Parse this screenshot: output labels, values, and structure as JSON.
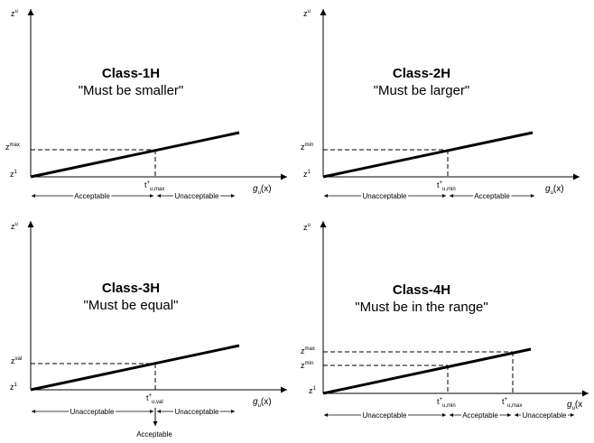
{
  "panels": [
    {
      "title": "Class-1H",
      "subtitle": "\"Must be smaller\"",
      "y_axis": {
        "base": "z",
        "sup": "u"
      },
      "x_axis": {
        "base": "g",
        "sub": "u",
        "tail": "(x)"
      },
      "origin": {
        "base": "z",
        "sup": "1"
      },
      "level_label": {
        "base": "z",
        "sup": "max"
      },
      "threshold": {
        "base": "t",
        "sup": "+",
        "sub": "u,max"
      },
      "regions": [
        "Acceptable",
        "Unacceptable"
      ]
    },
    {
      "title": "Class-2H",
      "subtitle": "\"Must be larger\"",
      "y_axis": {
        "base": "z",
        "sup": "u"
      },
      "x_axis": {
        "base": "g",
        "sub": "u",
        "tail": "(x)"
      },
      "origin": {
        "base": "z",
        "sup": "1"
      },
      "level_label": {
        "base": "z",
        "sup": "min"
      },
      "threshold": {
        "base": "t",
        "sup": "+",
        "sub": "u,min"
      },
      "regions": [
        "Unacceptable",
        "Acceptable"
      ]
    },
    {
      "title": "Class-3H",
      "subtitle": "\"Must be equal\"",
      "y_axis": {
        "base": "z",
        "sup": "u"
      },
      "x_axis": {
        "base": "g",
        "sub": "u",
        "tail": "(x)"
      },
      "origin": {
        "base": "z",
        "sup": "1"
      },
      "level_label": {
        "base": "z",
        "sup": "val"
      },
      "threshold": {
        "base": "t",
        "sup": "+",
        "sub": "u,val"
      },
      "regions": [
        "Unacceptable",
        "Unacceptable"
      ],
      "point_label": "Acceptable"
    },
    {
      "title": "Class-4H",
      "subtitle": "\"Must be in the range\"",
      "y_axis": {
        "base": "z",
        "sup": "u"
      },
      "x_axis": {
        "base": "g",
        "sub": "u",
        "tail": "(x"
      },
      "origin": {
        "base": "z",
        "sup": "1"
      },
      "level_label_max": {
        "base": "z",
        "sup": "max"
      },
      "level_label_min": {
        "base": "z",
        "sup": "min"
      },
      "threshold_min": {
        "base": "t",
        "sup": "+",
        "sub": "u,min"
      },
      "threshold_max": {
        "base": "t",
        "sup": "+",
        "sub": "u,max"
      },
      "regions": [
        "Unacceptable",
        "Acceptable",
        "Unacceptable"
      ]
    }
  ]
}
